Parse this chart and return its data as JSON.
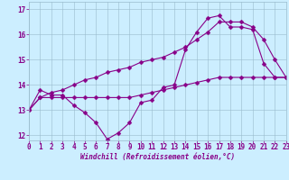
{
  "xlabel": "Windchill (Refroidissement éolien,°C)",
  "background_color": "#cceeff",
  "grid_color": "#99bbcc",
  "line_color": "#880088",
  "xlim": [
    0,
    23
  ],
  "ylim": [
    11.8,
    17.3
  ],
  "xticks": [
    0,
    1,
    2,
    3,
    4,
    5,
    6,
    7,
    8,
    9,
    10,
    11,
    12,
    13,
    14,
    15,
    16,
    17,
    18,
    19,
    20,
    21,
    22,
    23
  ],
  "yticks": [
    12,
    13,
    14,
    15,
    16,
    17
  ],
  "series": [
    {
      "x": [
        0,
        1,
        2,
        3,
        4,
        5,
        6,
        7,
        8,
        9,
        10,
        11,
        12,
        13,
        14,
        15,
        16,
        17,
        18,
        19,
        20,
        21,
        22,
        23
      ],
      "y": [
        13.0,
        13.8,
        13.6,
        13.6,
        13.2,
        12.9,
        12.5,
        11.85,
        12.1,
        12.5,
        13.3,
        13.4,
        13.9,
        14.0,
        15.4,
        16.1,
        16.65,
        16.75,
        16.3,
        16.3,
        16.2,
        14.85,
        14.3,
        14.3
      ]
    },
    {
      "x": [
        0,
        1,
        2,
        3,
        4,
        5,
        6,
        7,
        8,
        9,
        10,
        11,
        12,
        13,
        14,
        15,
        16,
        17,
        18,
        19,
        20,
        21,
        22,
        23
      ],
      "y": [
        13.0,
        13.5,
        13.5,
        13.5,
        13.5,
        13.5,
        13.5,
        13.5,
        13.5,
        13.5,
        13.6,
        13.7,
        13.8,
        13.9,
        14.0,
        14.1,
        14.2,
        14.3,
        14.3,
        14.3,
        14.3,
        14.3,
        14.3,
        14.3
      ]
    },
    {
      "x": [
        0,
        1,
        2,
        3,
        4,
        5,
        6,
        7,
        8,
        9,
        10,
        11,
        12,
        13,
        14,
        15,
        16,
        17,
        18,
        19,
        20,
        21,
        22,
        23
      ],
      "y": [
        13.0,
        13.5,
        13.7,
        13.8,
        14.0,
        14.2,
        14.3,
        14.5,
        14.6,
        14.7,
        14.9,
        15.0,
        15.1,
        15.3,
        15.5,
        15.8,
        16.1,
        16.5,
        16.5,
        16.5,
        16.3,
        15.8,
        15.0,
        14.3
      ]
    }
  ]
}
